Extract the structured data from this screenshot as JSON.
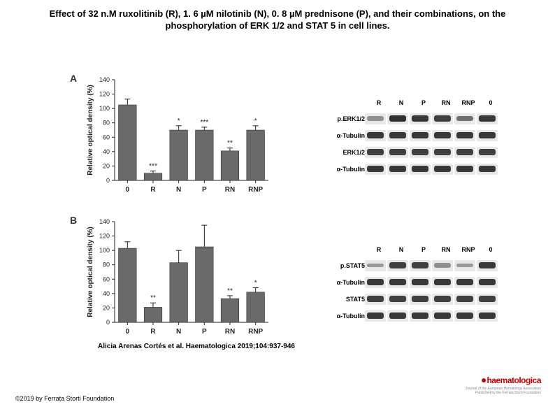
{
  "title": "Effect of 32 n.M ruxolitinib (R), 1. 6 µM nilotinib (N), 0. 8 µM prednisone (P), and their combinations, on the phosphorylation of ERK 1/2 and STAT 5 in cell lines.",
  "panelA": {
    "label": "A",
    "chart": {
      "type": "bar",
      "ylabel": "Relative optical density (%)",
      "ylim": [
        0,
        140
      ],
      "ytick_step": 20,
      "categories": [
        "0",
        "R",
        "N",
        "P",
        "RN",
        "RNP"
      ],
      "values": [
        105,
        10,
        70,
        70,
        41,
        70
      ],
      "errors": [
        8,
        3,
        6,
        4,
        4,
        6
      ],
      "sig": [
        "",
        "***",
        "*",
        "***",
        "**",
        "*"
      ],
      "bar_color": "#6a6a6a",
      "background": "#ffffff",
      "axis_color": "#222"
    },
    "blot": {
      "cols": [
        "R",
        "N",
        "P",
        "RN",
        "RNP",
        "0"
      ],
      "rows": [
        "p.ERK1/2",
        "α-Tubulin",
        "ERK1/2",
        "α-Tubulin"
      ],
      "band_intensities": [
        [
          0.35,
          0.95,
          0.9,
          0.85,
          0.55,
          0.9
        ],
        [
          0.9,
          0.9,
          0.9,
          0.9,
          0.9,
          0.9
        ],
        [
          0.85,
          0.85,
          0.85,
          0.85,
          0.85,
          0.85
        ],
        [
          0.9,
          0.9,
          0.9,
          0.9,
          0.9,
          0.9
        ]
      ]
    }
  },
  "panelB": {
    "label": "B",
    "chart": {
      "type": "bar",
      "ylabel": "Relative optical density (%)",
      "ylim": [
        0,
        140
      ],
      "ytick_step": 20,
      "categories": [
        "0",
        "R",
        "N",
        "P",
        "RN",
        "RNP"
      ],
      "values": [
        103,
        21,
        83,
        105,
        33,
        42
      ],
      "errors": [
        9,
        6,
        17,
        30,
        4,
        6
      ],
      "sig": [
        "",
        "**",
        "",
        "",
        "**",
        "*"
      ],
      "bar_color": "#6a6a6a",
      "background": "#ffffff",
      "axis_color": "#222"
    },
    "blot": {
      "cols": [
        "R",
        "N",
        "P",
        "RN",
        "RNP",
        "0"
      ],
      "rows": [
        "p.STAT5",
        "α-Tubulin",
        "STAT5",
        "α-Tubulin"
      ],
      "band_intensities": [
        [
          0.3,
          0.85,
          0.85,
          0.35,
          0.3,
          0.9
        ],
        [
          0.9,
          0.9,
          0.9,
          0.9,
          0.9,
          0.9
        ],
        [
          0.85,
          0.85,
          0.85,
          0.85,
          0.85,
          0.85
        ],
        [
          0.9,
          0.9,
          0.9,
          0.9,
          0.9,
          0.9
        ]
      ]
    }
  },
  "citation": "Alicia Arenas Cortés et al. Haematologica 2019;104:937-946",
  "copyright": "©2019 by Ferrata Storti Foundation",
  "logo": {
    "name": "haematologica",
    "tagline": "Journal of the European Hematology Association\nPublished by the Ferrata Storti Foundation"
  }
}
